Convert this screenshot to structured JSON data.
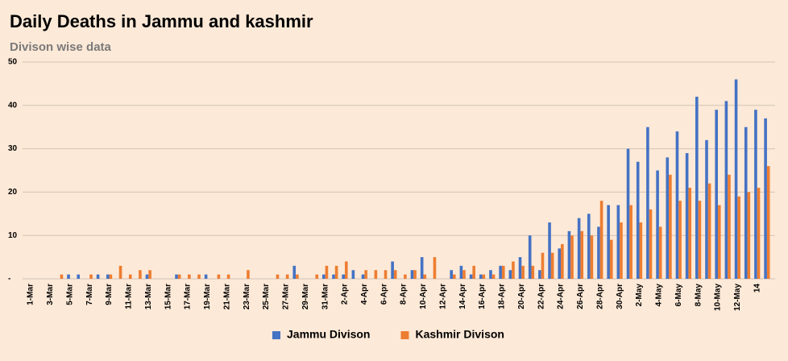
{
  "chart_data": {
    "type": "bar",
    "title": "Daily Deaths in Jammu and kashmir",
    "subtitle": "Divison wise data",
    "categories": [
      "1-Mar",
      null,
      "3-Mar",
      null,
      "5-Mar",
      null,
      "7-Mar",
      null,
      "9-Mar",
      null,
      "11-Mar",
      null,
      "13-Mar",
      null,
      "15-Mar",
      null,
      "17-Mar",
      null,
      "19-Mar",
      null,
      "21-Mar",
      null,
      "23-Mar",
      null,
      "25-Mar",
      null,
      "27-Mar",
      null,
      "29-Mar",
      null,
      "31-Mar",
      null,
      "2-Apr",
      null,
      "4-Apr",
      null,
      "6-Apr",
      null,
      "8-Apr",
      null,
      "10-Apr",
      null,
      "12-Apr",
      null,
      "14-Apr",
      null,
      "16-Apr",
      null,
      "18-Apr",
      null,
      "20-Apr",
      null,
      "22-Apr",
      null,
      "24-Apr",
      null,
      "26-Apr",
      null,
      "28-Apr",
      null,
      "30-Apr",
      null,
      "2-May",
      null,
      "4-May",
      null,
      "6-May",
      null,
      "8-May",
      null,
      "10-May",
      null,
      "12-May",
      null,
      "14",
      null
    ],
    "series": [
      {
        "name": "Jammu Divison",
        "color": "#4472c4",
        "values": [
          0,
          0,
          0,
          0,
          1,
          1,
          0,
          1,
          1,
          0,
          0,
          0,
          1,
          0,
          0,
          1,
          0,
          0,
          1,
          0,
          0,
          0,
          0,
          0,
          0,
          0,
          0,
          3,
          0,
          0,
          1,
          1,
          1,
          2,
          1,
          0,
          0,
          4,
          0,
          2,
          5,
          0,
          0,
          2,
          3,
          1,
          1,
          2,
          3,
          2,
          5,
          10,
          2,
          13,
          7,
          11,
          14,
          15,
          12,
          17,
          17,
          30,
          27,
          35,
          25,
          28,
          34,
          29,
          42,
          32,
          39,
          41,
          46,
          35,
          39,
          37
        ]
      },
      {
        "name": "Kashmir Divison",
        "color": "#ed7d31",
        "values": [
          0,
          0,
          0,
          1,
          0,
          0,
          1,
          0,
          1,
          3,
          1,
          2,
          2,
          0,
          0,
          1,
          1,
          1,
          0,
          1,
          1,
          0,
          2,
          0,
          0,
          1,
          1,
          1,
          0,
          1,
          3,
          3,
          4,
          0,
          2,
          2,
          2,
          2,
          1,
          2,
          1,
          5,
          0,
          1,
          2,
          3,
          1,
          1,
          3,
          4,
          3,
          3,
          6,
          6,
          8,
          10,
          11,
          10,
          18,
          9,
          13,
          17,
          13,
          16,
          12,
          24,
          18,
          21,
          18,
          22,
          17,
          24,
          19,
          20,
          21,
          26
        ]
      }
    ],
    "ylim": [
      0,
      50
    ],
    "yticks": [
      {
        "value": 0,
        "label": "-"
      },
      10,
      20,
      30,
      40,
      50
    ],
    "grid": true,
    "legend": "bottom"
  }
}
